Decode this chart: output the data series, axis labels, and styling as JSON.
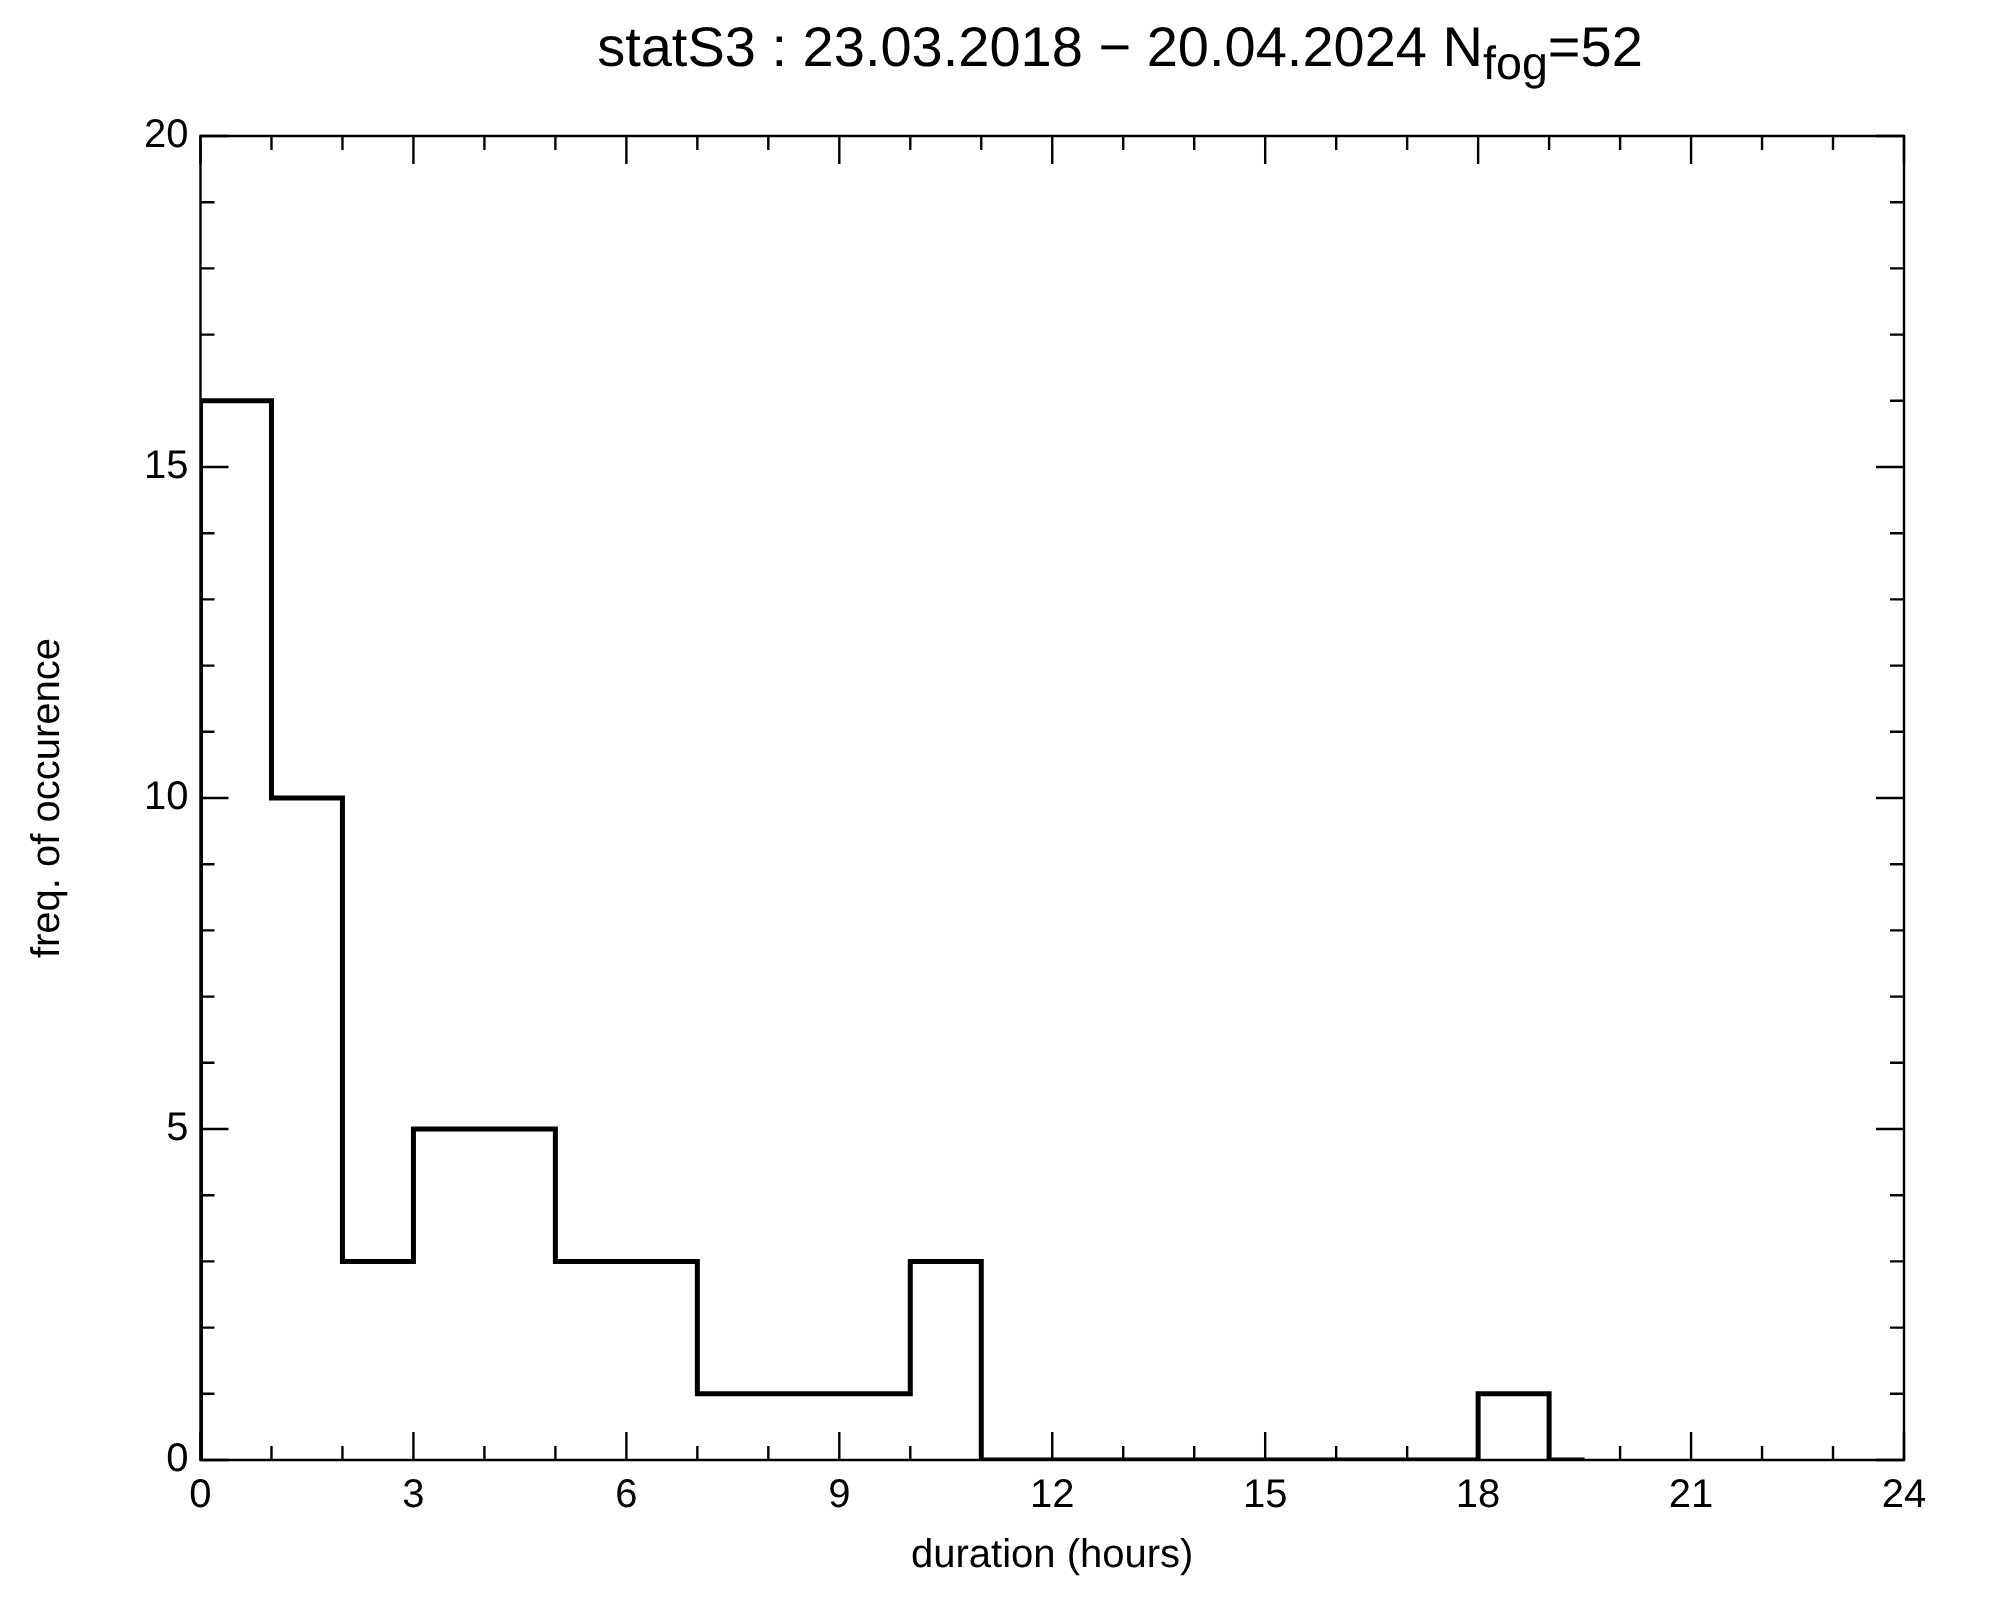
{
  "chart_data": {
    "type": "histogram",
    "title": "statS3 : 23.03.2018 − 20.04.2024 N$_{fog}$=52",
    "xlabel": "duration (hours)",
    "ylabel": "freq. of occurence",
    "bins": [
      0,
      1,
      2,
      3,
      4,
      5,
      6,
      7,
      8,
      9,
      10,
      11,
      12,
      13,
      14,
      15,
      16,
      17,
      18,
      19,
      19.5
    ],
    "values": [
      16,
      10,
      3,
      5,
      5,
      3,
      3,
      1,
      1,
      1,
      3,
      0,
      0,
      0,
      0,
      0,
      0,
      0,
      1,
      0
    ],
    "color": "#000000",
    "xlim": [
      0,
      24
    ],
    "ylim": [
      0,
      20
    ],
    "xticks": [
      0,
      {
        "value": 1,
        "label": null
      },
      {
        "value": 2,
        "label": null
      },
      3,
      {
        "value": 4,
        "label": null
      },
      {
        "value": 5,
        "label": null
      },
      6,
      {
        "value": 7,
        "label": null
      },
      {
        "value": 8,
        "label": null
      },
      9,
      {
        "value": 10,
        "label": null
      },
      {
        "value": 11,
        "label": null
      },
      12,
      {
        "value": 13,
        "label": null
      },
      {
        "value": 14,
        "label": null
      },
      15,
      {
        "value": 16,
        "label": null
      },
      {
        "value": 17,
        "label": null
      },
      18,
      {
        "value": 19,
        "label": null
      },
      {
        "value": 20,
        "label": null
      },
      21,
      {
        "value": 22,
        "label": null
      },
      {
        "value": 23,
        "label": null
      },
      24
    ],
    "yticks": [
      0,
      {
        "value": 1,
        "label": null
      },
      {
        "value": 2,
        "label": null
      },
      {
        "value": 3,
        "label": null
      },
      {
        "value": 4,
        "label": null
      },
      5,
      {
        "value": 6,
        "label": null
      },
      {
        "value": 7,
        "label": null
      },
      {
        "value": 8,
        "label": null
      },
      {
        "value": 9,
        "label": null
      },
      10,
      {
        "value": 11,
        "label": null
      },
      {
        "value": 12,
        "label": null
      },
      {
        "value": 13,
        "label": null
      },
      {
        "value": 14,
        "label": null
      },
      15,
      {
        "value": 16,
        "label": null
      },
      {
        "value": 17,
        "label": null
      },
      {
        "value": 18,
        "label": null
      },
      {
        "value": 19,
        "label": null
      },
      20
    ],
    "grid": false,
    "legend": false
  }
}
